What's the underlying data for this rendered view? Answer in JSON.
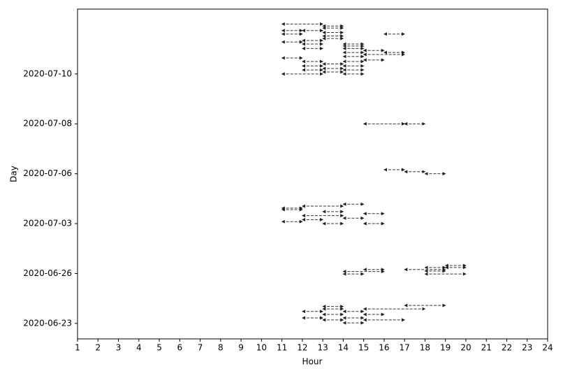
{
  "chart_data": {
    "type": "interval",
    "xlabel": "Hour",
    "ylabel": "Day",
    "xlim": [
      1,
      24
    ],
    "xticks": [
      1,
      2,
      3,
      4,
      5,
      6,
      7,
      8,
      9,
      10,
      11,
      12,
      13,
      14,
      15,
      16,
      17,
      18,
      19,
      20,
      21,
      22,
      23,
      24
    ],
    "ylim": [
      -0.31,
      6.3
    ],
    "yticks": [
      {
        "value": 0,
        "label": "2020-06-23"
      },
      {
        "value": 1,
        "label": "2020-06-26"
      },
      {
        "value": 2,
        "label": "2020-07-03"
      },
      {
        "value": 3,
        "label": "2020-07-06"
      },
      {
        "value": 4,
        "label": "2020-07-08"
      },
      {
        "value": 5,
        "label": "2020-07-10"
      }
    ],
    "color": "#333333",
    "y": [
      0.36,
      0.34,
      0.29,
      0.29,
      0.24,
      0.24,
      0.18,
      0.18,
      0.11,
      0.11,
      0.07,
      0.07,
      0.01,
      1.16,
      1.12,
      1.12,
      1.08,
      1.08,
      1.05,
      1.04,
      0.99,
      0.99,
      2.39,
      2.35,
      2.31,
      2.28,
      2.24,
      2.2,
      2.16,
      2.11,
      2.08,
      2.04,
      2.0,
      2.0,
      3.08,
      3.04,
      3.0,
      4.0,
      4.0,
      6.0,
      5.96,
      5.92,
      5.87,
      5.87,
      5.83,
      5.8,
      5.8,
      5.76,
      5.71,
      5.67,
      5.64,
      5.6,
      5.6,
      5.56,
      5.51,
      5.51,
      5.47,
      5.43,
      5.43,
      5.39,
      5.35,
      5.32,
      5.28,
      5.25,
      5.25,
      5.2,
      5.16,
      5.16,
      5.11,
      5.08,
      5.08,
      5.04,
      5.0,
      5.0
    ],
    "start": [
      17,
      13,
      13,
      15,
      12,
      14,
      13,
      15,
      12,
      14,
      13,
      15,
      14,
      19,
      18,
      19,
      15,
      17,
      18,
      14,
      14,
      18,
      14,
      12,
      11,
      11,
      13,
      15,
      12,
      14,
      12,
      11,
      13,
      15,
      16,
      17,
      18,
      15,
      17,
      11,
      13,
      13,
      11,
      12,
      13,
      11,
      16,
      13,
      13,
      12,
      11,
      12,
      14,
      14,
      12,
      14,
      15,
      14,
      16,
      15,
      14,
      11,
      15,
      12,
      14,
      13,
      12,
      14,
      13,
      12,
      14,
      13,
      11,
      14
    ],
    "end": [
      19,
      14,
      14,
      18,
      13,
      15,
      14,
      16,
      13,
      15,
      14,
      17,
      15,
      20,
      19,
      20,
      16,
      19,
      19,
      16,
      15,
      20,
      15,
      14,
      12,
      12,
      14,
      16,
      14,
      15,
      13,
      12,
      14,
      16,
      17,
      18,
      19,
      17,
      18,
      13,
      14,
      14,
      12,
      13,
      14,
      12,
      17,
      14,
      14,
      13,
      12,
      13,
      15,
      15,
      13,
      15,
      16,
      15,
      17,
      17,
      15,
      12,
      16,
      13,
      15,
      14,
      13,
      15,
      14,
      13,
      15,
      14,
      13,
      15
    ]
  }
}
